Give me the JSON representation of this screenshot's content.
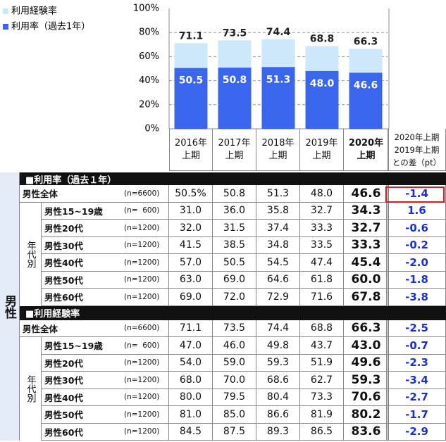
{
  "chart_data": {
    "type": "bar",
    "categories": [
      [
        "2016年",
        "上期"
      ],
      [
        "2017年",
        "上期"
      ],
      [
        "2018年",
        "上期"
      ],
      [
        "2019年",
        "上期"
      ],
      [
        "2020年",
        "上期"
      ]
    ],
    "series": [
      {
        "name": "利用経験率",
        "color": "#cde7fb",
        "values": [
          71.1,
          73.5,
          74.4,
          68.8,
          66.3
        ],
        "value_labels": [
          "71.1",
          "73.5",
          "74.4",
          "68.8",
          "66.3"
        ]
      },
      {
        "name": "利用率（過去1年）",
        "color": "#3a66ee",
        "values": [
          50.5,
          50.8,
          51.3,
          48.0,
          46.6
        ],
        "value_labels": [
          "50.5",
          "50.8",
          "51.3",
          "48.0",
          "46.6"
        ]
      }
    ],
    "ylim": [
      0,
      100
    ],
    "yticks": [
      {
        "value": 0,
        "label": "0%"
      },
      {
        "value": 20,
        "label": "20%"
      },
      {
        "value": 40,
        "label": "40%"
      },
      {
        "value": 60,
        "label": "60%"
      },
      {
        "value": 80,
        "label": "80%"
      },
      {
        "value": 100,
        "label": "100%"
      }
    ],
    "grid": true,
    "legend": "top-left"
  },
  "table": {
    "diff_header": [
      "2020年上期",
      "2019年上期",
      "との差（pt）"
    ],
    "side_label": "男性",
    "age_group_label": "年代別",
    "sections": [
      {
        "title": "■利用率（過去１年）",
        "rows": [
          {
            "label": "男性全体",
            "n": "(n=6600)",
            "values": [
              "50.5%",
              "50.8",
              "51.3",
              "48.0",
              "46.6"
            ],
            "diff": "-1.4"
          },
          {
            "label": "男性15~19歳",
            "n": "(n=  600)",
            "values": [
              "31.0",
              "36.0",
              "35.8",
              "32.7",
              "34.3"
            ],
            "diff": "1.6"
          },
          {
            "label": "男性20代",
            "n": "(n=1200)",
            "values": [
              "32.0",
              "31.5",
              "37.4",
              "33.3",
              "32.7"
            ],
            "diff": "-0.6"
          },
          {
            "label": "男性30代",
            "n": "(n=1200)",
            "values": [
              "41.5",
              "38.5",
              "34.8",
              "33.5",
              "33.3"
            ],
            "diff": "-0.2"
          },
          {
            "label": "男性40代",
            "n": "(n=1200)",
            "values": [
              "57.0",
              "50.5",
              "54.5",
              "47.4",
              "45.4"
            ],
            "diff": "-2.0"
          },
          {
            "label": "男性50代",
            "n": "(n=1200)",
            "values": [
              "63.0",
              "69.0",
              "64.6",
              "61.8",
              "60.0"
            ],
            "diff": "-1.8"
          },
          {
            "label": "男性60代",
            "n": "(n=1200)",
            "values": [
              "69.0",
              "72.0",
              "72.9",
              "71.6",
              "67.8"
            ],
            "diff": "-3.8"
          }
        ]
      },
      {
        "title": "■利用経験率",
        "rows": [
          {
            "label": "男性全体",
            "n": "(n=6600)",
            "values": [
              "71.1",
              "73.5",
              "74.4",
              "68.8",
              "66.3"
            ],
            "diff": "-2.5"
          },
          {
            "label": "男性15~19歳",
            "n": "(n=  600)",
            "values": [
              "47.0",
              "46.0",
              "49.8",
              "43.7",
              "43.0"
            ],
            "diff": "-0.7"
          },
          {
            "label": "男性20代",
            "n": "(n=1200)",
            "values": [
              "54.0",
              "59.0",
              "59.3",
              "51.9",
              "49.6"
            ],
            "diff": "-2.3"
          },
          {
            "label": "男性30代",
            "n": "(n=1200)",
            "values": [
              "68.0",
              "70.0",
              "68.6",
              "62.7",
              "59.3"
            ],
            "diff": "-3.4"
          },
          {
            "label": "男性40代",
            "n": "(n=1200)",
            "values": [
              "80.0",
              "79.5",
              "80.4",
              "73.3",
              "70.6"
            ],
            "diff": "-2.7"
          },
          {
            "label": "男性50代",
            "n": "(n=1200)",
            "values": [
              "81.0",
              "85.0",
              "86.6",
              "81.9",
              "80.2"
            ],
            "diff": "-1.7"
          },
          {
            "label": "男性60代",
            "n": "(n=1200)",
            "values": [
              "84.5",
              "87.5",
              "89.3",
              "86.5",
              "83.6"
            ],
            "diff": "-2.9"
          }
        ]
      }
    ]
  }
}
